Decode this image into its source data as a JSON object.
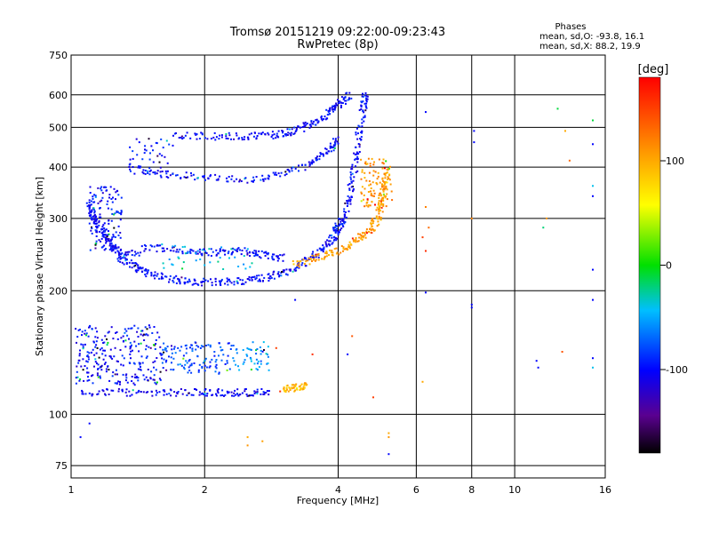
{
  "chart_data": {
    "type": "scatter",
    "title": "Tromsø 20151219 09:22:00-09:23:43",
    "subtitle": "RwPretec (8p)",
    "xlabel": "Frequency [MHz]",
    "ylabel": "Stationary phase Virtual Height [km]",
    "x_scale": "log",
    "y_scale": "log",
    "xlim": [
      1,
      16
    ],
    "ylim": [
      70,
      750
    ],
    "x_ticks": [
      1,
      2,
      4,
      6,
      8,
      10,
      16
    ],
    "y_ticks": [
      75,
      100,
      200,
      300,
      400,
      500,
      600,
      750
    ],
    "grid": true,
    "stats": {
      "heading": "Phases",
      "o_mode": "mean, sd,O: -93.8, 16.1",
      "x_mode": "mean, sd,X:  88.2, 19.9"
    },
    "colorbar": {
      "label": "[deg]",
      "range": [
        -180,
        180
      ],
      "ticks": [
        100,
        0,
        -100
      ]
    },
    "traces": [
      {
        "points": [
          [
            1.9,
            210
          ],
          [
            1.7,
            213
          ],
          [
            1.5,
            220
          ],
          [
            1.4,
            228
          ],
          [
            1.3,
            240
          ],
          [
            1.25,
            255
          ],
          [
            1.2,
            268
          ],
          [
            1.15,
            285
          ],
          [
            1.12,
            310
          ],
          [
            1.1,
            330
          ]
        ],
        "phase": -100
      },
      {
        "points": [
          [
            1.9,
            210
          ],
          [
            2.2,
            210
          ],
          [
            2.5,
            212
          ],
          [
            2.8,
            216
          ],
          [
            3.1,
            224
          ],
          [
            3.4,
            236
          ],
          [
            3.7,
            252
          ],
          [
            3.9,
            270
          ],
          [
            4.0,
            285
          ],
          [
            4.1,
            300
          ]
        ],
        "phase": -100
      },
      {
        "points": [
          [
            4.1,
            300
          ],
          [
            4.25,
            340
          ],
          [
            4.35,
            400
          ],
          [
            4.45,
            470
          ],
          [
            4.55,
            560
          ],
          [
            4.6,
            600
          ]
        ],
        "phase": -100
      },
      {
        "points": [
          [
            3.2,
            232
          ],
          [
            3.6,
            240
          ],
          [
            4.0,
            250
          ],
          [
            4.4,
            265
          ],
          [
            4.7,
            280
          ],
          [
            4.9,
            300
          ],
          [
            5.0,
            330
          ],
          [
            5.1,
            360
          ],
          [
            5.15,
            390
          ]
        ],
        "phase": 105
      },
      {
        "points": [
          [
            1.3,
            240
          ],
          [
            1.5,
            255
          ],
          [
            1.8,
            250
          ],
          [
            2.1,
            248
          ],
          [
            2.4,
            250
          ],
          [
            2.7,
            245
          ],
          [
            3.0,
            240
          ]
        ],
        "phase": -100
      },
      {
        "points": [
          [
            1.35,
            400
          ],
          [
            1.6,
            385
          ],
          [
            2.0,
            378
          ],
          [
            2.5,
            372
          ],
          [
            3.0,
            385
          ],
          [
            3.5,
            410
          ],
          [
            3.8,
            440
          ],
          [
            4.0,
            470
          ]
        ],
        "phase": -100
      },
      {
        "points": [
          [
            1.7,
            480
          ],
          [
            2.1,
            475
          ],
          [
            2.5,
            475
          ],
          [
            2.9,
            480
          ],
          [
            3.2,
            490
          ],
          [
            3.5,
            510
          ],
          [
            3.8,
            540
          ],
          [
            4.0,
            570
          ],
          [
            4.3,
            600
          ]
        ],
        "phase": -100
      },
      {
        "points": [
          [
            1.05,
            113
          ],
          [
            1.3,
            113
          ],
          [
            1.6,
            113
          ],
          [
            1.9,
            113
          ],
          [
            2.2,
            113
          ],
          [
            2.5,
            113
          ],
          [
            2.8,
            113
          ]
        ],
        "phase": -105
      },
      {
        "points": [
          [
            3.0,
            115
          ],
          [
            3.2,
            116
          ],
          [
            3.4,
            117
          ]
        ],
        "phase": 95
      }
    ],
    "clouds": [
      {
        "x": [
          1.02,
          1.6
        ],
        "y": [
          118,
          165
        ],
        "phase": -100,
        "n": 260
      },
      {
        "x": [
          1.6,
          2.3
        ],
        "y": [
          125,
          150
        ],
        "phase": -80,
        "n": 120
      },
      {
        "x": [
          2.3,
          2.8
        ],
        "y": [
          128,
          150
        ],
        "phase": -60,
        "n": 50
      },
      {
        "x": [
          1.1,
          1.3
        ],
        "y": [
          250,
          360
        ],
        "phase": -100,
        "n": 120
      },
      {
        "x": [
          1.35,
          1.7
        ],
        "y": [
          380,
          470
        ],
        "phase": -100,
        "n": 40
      },
      {
        "x": [
          4.5,
          5.3
        ],
        "y": [
          320,
          420
        ],
        "phase": 110,
        "n": 90
      },
      {
        "x": [
          1.6,
          2.6
        ],
        "y": [
          225,
          260
        ],
        "phase": -40,
        "n": 40
      }
    ],
    "scatter_points": [
      {
        "x": 6.3,
        "y": 545,
        "phase": -100
      },
      {
        "x": 8.1,
        "y": 490,
        "phase": -100
      },
      {
        "x": 8.1,
        "y": 460,
        "phase": -100
      },
      {
        "x": 12.5,
        "y": 555,
        "phase": -10
      },
      {
        "x": 13.0,
        "y": 490,
        "phase": 100
      },
      {
        "x": 13.3,
        "y": 415,
        "phase": 130
      },
      {
        "x": 15.0,
        "y": 520,
        "phase": -10
      },
      {
        "x": 15.0,
        "y": 455,
        "phase": -100
      },
      {
        "x": 15.0,
        "y": 360,
        "phase": -40
      },
      {
        "x": 15.0,
        "y": 340,
        "phase": -100
      },
      {
        "x": 6.3,
        "y": 320,
        "phase": 120
      },
      {
        "x": 6.4,
        "y": 285,
        "phase": 130
      },
      {
        "x": 6.2,
        "y": 270,
        "phase": 150
      },
      {
        "x": 6.3,
        "y": 250,
        "phase": 160
      },
      {
        "x": 8.0,
        "y": 300,
        "phase": 120
      },
      {
        "x": 11.8,
        "y": 300,
        "phase": 110
      },
      {
        "x": 11.6,
        "y": 285,
        "phase": -20
      },
      {
        "x": 15.0,
        "y": 225,
        "phase": -100
      },
      {
        "x": 6.3,
        "y": 198,
        "phase": -100
      },
      {
        "x": 8.0,
        "y": 185,
        "phase": -100
      },
      {
        "x": 8.0,
        "y": 182,
        "phase": -100
      },
      {
        "x": 15.0,
        "y": 190,
        "phase": -100
      },
      {
        "x": 11.2,
        "y": 135,
        "phase": -100
      },
      {
        "x": 11.3,
        "y": 130,
        "phase": -100
      },
      {
        "x": 12.8,
        "y": 142,
        "phase": 140
      },
      {
        "x": 15.0,
        "y": 137,
        "phase": -100
      },
      {
        "x": 15.0,
        "y": 130,
        "phase": -40
      },
      {
        "x": 6.2,
        "y": 120,
        "phase": 100
      },
      {
        "x": 4.8,
        "y": 110,
        "phase": 150
      },
      {
        "x": 5.2,
        "y": 90,
        "phase": 100
      },
      {
        "x": 5.2,
        "y": 88,
        "phase": 110
      },
      {
        "x": 5.2,
        "y": 80,
        "phase": -100
      },
      {
        "x": 1.1,
        "y": 95,
        "phase": -100
      },
      {
        "x": 1.05,
        "y": 88,
        "phase": -100
      },
      {
        "x": 2.5,
        "y": 88,
        "phase": 100
      },
      {
        "x": 2.5,
        "y": 84,
        "phase": 110
      },
      {
        "x": 2.7,
        "y": 86,
        "phase": 105
      },
      {
        "x": 3.5,
        "y": 140,
        "phase": 160
      },
      {
        "x": 2.9,
        "y": 145,
        "phase": 150
      },
      {
        "x": 4.2,
        "y": 140,
        "phase": -100
      },
      {
        "x": 4.3,
        "y": 155,
        "phase": 140
      },
      {
        "x": 3.2,
        "y": 190,
        "phase": -100
      }
    ]
  }
}
